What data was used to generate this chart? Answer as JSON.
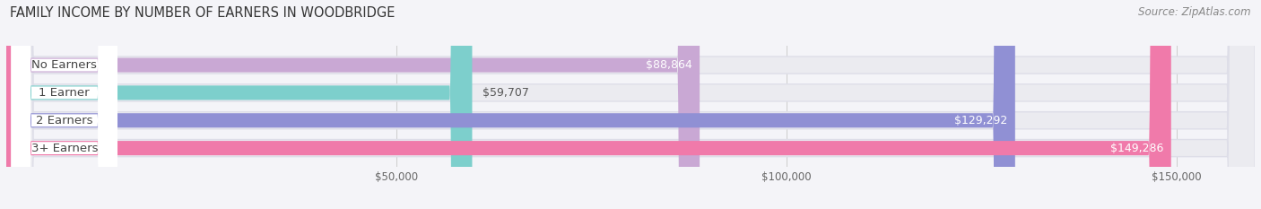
{
  "title": "FAMILY INCOME BY NUMBER OF EARNERS IN WOODBRIDGE",
  "source": "Source: ZipAtlas.com",
  "categories": [
    "No Earners",
    "1 Earner",
    "2 Earners",
    "3+ Earners"
  ],
  "values": [
    88864,
    59707,
    129292,
    149286
  ],
  "bar_colors": [
    "#c9a8d4",
    "#7dcfcc",
    "#9090d4",
    "#f07aaa"
  ],
  "xlim_max": 160000,
  "xticks": [
    50000,
    100000,
    150000
  ],
  "xtick_labels": [
    "$50,000",
    "$100,000",
    "$150,000"
  ],
  "bg_color": "#f4f4f8",
  "bar_bg_color": "#ebebf0",
  "bar_bg_edge_color": "#dedee8",
  "title_fontsize": 10.5,
  "source_fontsize": 8.5,
  "tick_fontsize": 8.5,
  "label_fontsize": 9.5,
  "value_fontsize": 9,
  "bar_height": 0.62,
  "bar_gap": 0.38
}
